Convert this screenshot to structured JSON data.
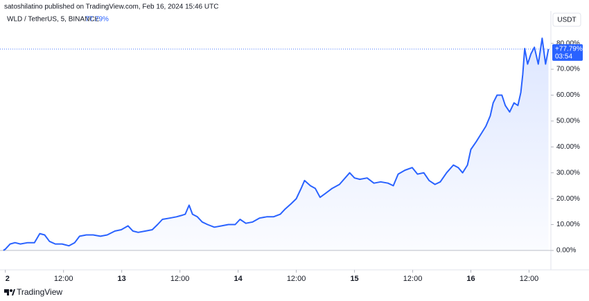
{
  "chart_data": {
    "type": "line",
    "publisher": "satoshilatino published on TradingView.com, Feb 16, 2024 15:46 UTC",
    "symbol": "WLD / TetherUS, 5, BINANCE",
    "change": "77.79%",
    "currency": "USDT",
    "footer": "TradingView",
    "color": "#2962ff",
    "x": [
      -0.4,
      0,
      1,
      2,
      3.1,
      4.6,
      6,
      7.1,
      8.1,
      9.1,
      10.3,
      11.7,
      13.1,
      14.3,
      15.3,
      16.7,
      18.1,
      19.6,
      21,
      22.6,
      23.9,
      25.3,
      26.3,
      27.4,
      28.9,
      30.3,
      31.4,
      32.4,
      33.9,
      35.3,
      36.3,
      37.1,
      37.9,
      38.6,
      39.6,
      40.6,
      41.7,
      43.1,
      44.6,
      46,
      47.4,
      48.4,
      49.6,
      51,
      52.4,
      53.9,
      55.3,
      56.7,
      57.7,
      58.9,
      60,
      61,
      61.7,
      62.9,
      63.9,
      64.9,
      66,
      67.4,
      68.9,
      70.3,
      71,
      72,
      73.1,
      74.6,
      76,
      77.4,
      78.9,
      80,
      81,
      82.4,
      83.9,
      85,
      86.3,
      87.4,
      88.6,
      89.7,
      91,
      92.4,
      93.4,
      94.3,
      95.3,
      96,
      97.1,
      98.1,
      99.1,
      100,
      100.6,
      101.4,
      102.4,
      103.1,
      104,
      104.9,
      105.7,
      106.3,
      106.7,
      107.1,
      107.7,
      108.4,
      109.1,
      109.9,
      110.7,
      111.4,
      112
    ],
    "values": [
      0,
      0.5,
      2.5,
      3,
      2.5,
      3,
      3,
      6.5,
      6,
      3.5,
      2.5,
      2.5,
      1.8,
      3,
      5.5,
      6,
      6,
      5.5,
      6,
      7.5,
      8,
      9.5,
      7.5,
      7,
      7.5,
      8,
      10,
      12,
      12.5,
      13,
      13.5,
      14,
      17.5,
      14,
      13,
      11,
      10,
      9,
      9.5,
      10,
      10,
      12,
      10.5,
      11,
      12.5,
      13,
      13,
      14,
      16,
      18,
      20,
      24,
      27,
      25,
      24,
      20.5,
      22,
      24,
      25.5,
      28.5,
      30,
      28,
      27.5,
      28,
      26,
      26.5,
      26,
      25,
      29.5,
      31,
      32,
      29.5,
      30,
      27,
      25.5,
      26.5,
      30,
      33,
      32,
      30,
      33,
      39,
      42,
      45,
      48,
      52,
      57,
      60,
      60,
      56,
      53.5,
      57,
      56,
      61,
      68,
      78,
      72,
      76,
      78.5,
      72,
      82,
      72,
      77.79
    ],
    "last": {
      "value": 77.79,
      "label": "+77.79%"
    },
    "countdown": "03:54",
    "xlim": [
      -1.1,
      112.5
    ],
    "ylim": [
      -7.5,
      91.4
    ],
    "xticks": [
      {
        "value": 0,
        "label": "2"
      },
      {
        "value": 12,
        "label": "12:00"
      },
      {
        "value": 24,
        "label": "13"
      },
      {
        "value": 36,
        "label": "12:00"
      },
      {
        "value": 48,
        "label": "14"
      },
      {
        "value": 60,
        "label": "12:00"
      },
      {
        "value": 72,
        "label": "15"
      },
      {
        "value": 84,
        "label": "12:00"
      },
      {
        "value": 96,
        "label": "16"
      },
      {
        "value": 108,
        "label": "12:00"
      }
    ],
    "yticks": [
      {
        "value": 0,
        "label": "0.00%"
      },
      {
        "value": 10,
        "label": "10.00%"
      },
      {
        "value": 20,
        "label": "20.00%"
      },
      {
        "value": 30,
        "label": "30.00%"
      },
      {
        "value": 40,
        "label": "40.00%"
      },
      {
        "value": 50,
        "label": "50.00%"
      },
      {
        "value": 60,
        "label": "60.00%"
      },
      {
        "value": 70,
        "label": "70.00%"
      },
      {
        "value": 80,
        "label": "80.00%"
      }
    ]
  }
}
